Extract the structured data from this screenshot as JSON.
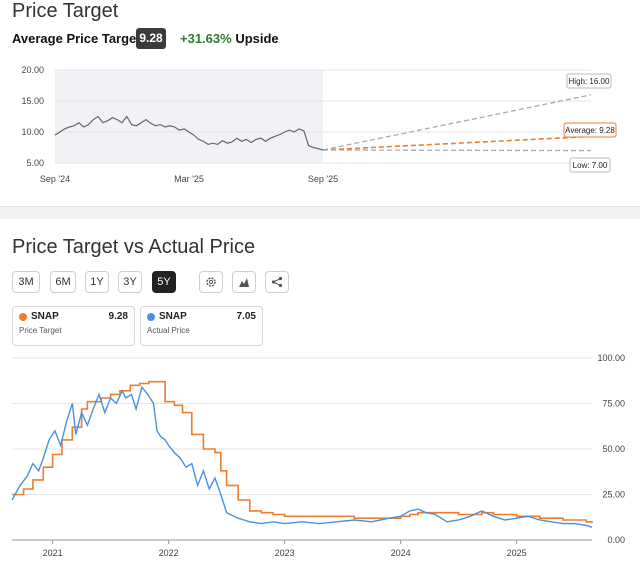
{
  "colors": {
    "price": "#666666",
    "target": "#f07c2e",
    "actual": "#4a90e2",
    "upside": "#2e7d32",
    "grey_dash": "#aaaaaa"
  },
  "top": {
    "title": "Price Target",
    "avg_label": "Average Price Target",
    "avg_badge": "9.28",
    "upside_pct": "+31.63%",
    "upside_word": "Upside",
    "callouts": {
      "high": "High: 16.00",
      "average": "Average: 9.28",
      "low": "Low: 7.00"
    }
  },
  "bottom": {
    "title": "Price Target vs Actual Price",
    "ranges": [
      "3M",
      "6M",
      "1Y",
      "3Y",
      "5Y"
    ],
    "active_range": "5Y",
    "tools": [
      "gear-icon",
      "mountain-chart-icon",
      "share-icon"
    ],
    "legend": [
      {
        "symbol": "SNAP",
        "value": "9.28",
        "desc": "Price Target",
        "color": "#f07c2e"
      },
      {
        "symbol": "SNAP",
        "value": "7.05",
        "desc": "Actual Price",
        "color": "#4a90e2"
      }
    ]
  },
  "chart_data": [
    {
      "type": "line",
      "x_ticks": [
        "Sep '24",
        "Mar '25",
        "Sep '25"
      ],
      "y_ticks": [
        "20.00",
        "15.00",
        "10.00",
        "5.00"
      ],
      "ylim": [
        5,
        20
      ],
      "grid": true,
      "series": [
        {
          "values": [
            9.5,
            10.0,
            10.5,
            10.8,
            11.0,
            11.5,
            10.8,
            11.2,
            12.0,
            12.5,
            11.5,
            11.8,
            12.3,
            12.0,
            11.5,
            12.5,
            11.2,
            11.0,
            11.5,
            12.0,
            11.4,
            11.0,
            11.2,
            10.8,
            11.0,
            10.8,
            10.3,
            10.5,
            10.0,
            9.5,
            8.8,
            8.5,
            8.0,
            8.2,
            8.0,
            8.6,
            8.2,
            8.4,
            9.0,
            8.5,
            8.8,
            8.3,
            8.8,
            9.0,
            8.5,
            9.0,
            9.3,
            9.6,
            10.0,
            10.3,
            10.0,
            10.5,
            10.2,
            7.8,
            7.5,
            7.3,
            7.1
          ]
        }
      ],
      "forecast": {
        "high": 16.0,
        "average": 9.28,
        "low": 7.0,
        "start": 7.1
      }
    },
    {
      "type": "line",
      "x_ticks": [
        "2021",
        "2022",
        "2023",
        "2024",
        "2025"
      ],
      "y_ticks": [
        "100.00",
        "75.00",
        "50.00",
        "25.00",
        "0.00"
      ],
      "ylim": [
        0,
        100
      ],
      "grid": true,
      "series": [
        {
          "name": "Price Target",
          "x": [
            2020.65,
            2020.75,
            2020.83,
            2020.92,
            2021.0,
            2021.08,
            2021.17,
            2021.25,
            2021.3,
            2021.35,
            2021.42,
            2021.5,
            2021.58,
            2021.67,
            2021.75,
            2021.83,
            2021.92,
            2021.97,
            2022.05,
            2022.12,
            2022.2,
            2022.3,
            2022.4,
            2022.45,
            2022.5,
            2022.6,
            2022.7,
            2022.8,
            2022.9,
            2023.0,
            2023.1,
            2023.3,
            2023.5,
            2023.6,
            2023.7,
            2023.85,
            2024.0,
            2024.08,
            2024.15,
            2024.2,
            2024.35,
            2024.5,
            2024.6,
            2024.7,
            2024.8,
            2025.0,
            2025.2,
            2025.4,
            2025.6,
            2025.65
          ],
          "values": [
            25,
            28,
            33,
            40,
            47,
            55,
            62,
            72,
            76,
            76,
            78,
            80,
            82,
            85,
            86,
            87,
            87,
            76,
            74,
            70,
            58,
            50,
            48,
            38,
            30,
            22,
            16,
            15,
            14,
            13,
            13,
            13,
            13,
            12,
            12,
            12,
            13,
            14,
            15,
            15,
            15,
            14,
            14,
            15,
            14,
            13,
            12,
            11,
            10,
            9.28
          ]
        },
        {
          "name": "Actual Price",
          "x": [
            2020.65,
            2020.72,
            2020.78,
            2020.83,
            2020.88,
            2020.92,
            2020.97,
            2021.02,
            2021.07,
            2021.12,
            2021.17,
            2021.2,
            2021.25,
            2021.3,
            2021.35,
            2021.4,
            2021.45,
            2021.5,
            2021.55,
            2021.6,
            2021.63,
            2021.68,
            2021.72,
            2021.77,
            2021.82,
            2021.87,
            2021.9,
            2021.93,
            2021.97,
            2022.0,
            2022.05,
            2022.1,
            2022.15,
            2022.2,
            2022.25,
            2022.3,
            2022.35,
            2022.4,
            2022.45,
            2022.5,
            2022.6,
            2022.7,
            2022.8,
            2022.9,
            2023.0,
            2023.15,
            2023.3,
            2023.45,
            2023.6,
            2023.75,
            2023.9,
            2024.0,
            2024.08,
            2024.15,
            2024.22,
            2024.3,
            2024.4,
            2024.5,
            2024.6,
            2024.7,
            2024.8,
            2024.9,
            2025.0,
            2025.1,
            2025.2,
            2025.3,
            2025.4,
            2025.5,
            2025.6,
            2025.65
          ],
          "values": [
            22,
            30,
            35,
            42,
            38,
            45,
            55,
            60,
            52,
            65,
            75,
            58,
            70,
            63,
            72,
            80,
            70,
            78,
            75,
            82,
            78,
            80,
            72,
            84,
            80,
            75,
            60,
            57,
            55,
            52,
            48,
            45,
            40,
            42,
            30,
            38,
            28,
            34,
            25,
            15,
            12,
            10,
            9,
            10,
            9,
            10,
            9,
            10,
            11,
            10,
            12,
            13,
            16,
            17,
            15,
            14,
            10,
            11,
            13,
            16,
            13,
            11,
            12,
            13,
            11,
            10,
            9,
            9,
            8,
            7.05
          ]
        }
      ]
    }
  ]
}
